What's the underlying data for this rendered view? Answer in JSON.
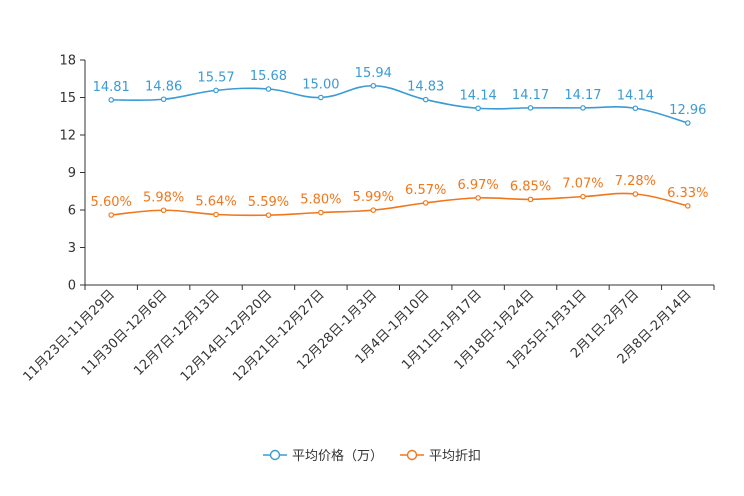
{
  "chart_data": {
    "type": "line",
    "categories": [
      "11月23日-11月29日",
      "11月30日-12月6日",
      "12月7日-12月13日",
      "12月14日-12月20日",
      "12月21日-12月27日",
      "12月28日-1月3日",
      "1月4日-1月10日",
      "1月11日-1月17日",
      "1月18日-1月24日",
      "1月25日-1月31日",
      "2月1日-2月7日",
      "2月8日-2月14日"
    ],
    "ylim": [
      0,
      18
    ],
    "yticks": [
      0,
      3,
      6,
      9,
      12,
      15,
      18
    ],
    "series": [
      {
        "name": "平均价格（万）",
        "color": "#3a9bd5",
        "values": [
          14.81,
          14.86,
          15.57,
          15.68,
          15.0,
          15.94,
          14.83,
          14.14,
          14.17,
          14.17,
          14.14,
          12.96
        ],
        "labels": [
          "14.81",
          "14.86",
          "15.57",
          "15.68",
          "15.00",
          "15.94",
          "14.83",
          "14.14",
          "14.17",
          "14.17",
          "14.14",
          "12.96"
        ]
      },
      {
        "name": "平均折扣",
        "color": "#f0771c",
        "values": [
          5.6,
          5.98,
          5.64,
          5.59,
          5.8,
          5.99,
          6.57,
          6.97,
          6.85,
          7.07,
          7.28,
          6.33
        ],
        "labels": [
          "5.60%",
          "5.98%",
          "5.64%",
          "5.59%",
          "5.80%",
          "5.99%",
          "6.57%",
          "6.97%",
          "6.85%",
          "7.07%",
          "7.28%",
          "6.33%"
        ]
      }
    ],
    "legend_position": "bottom-center"
  }
}
